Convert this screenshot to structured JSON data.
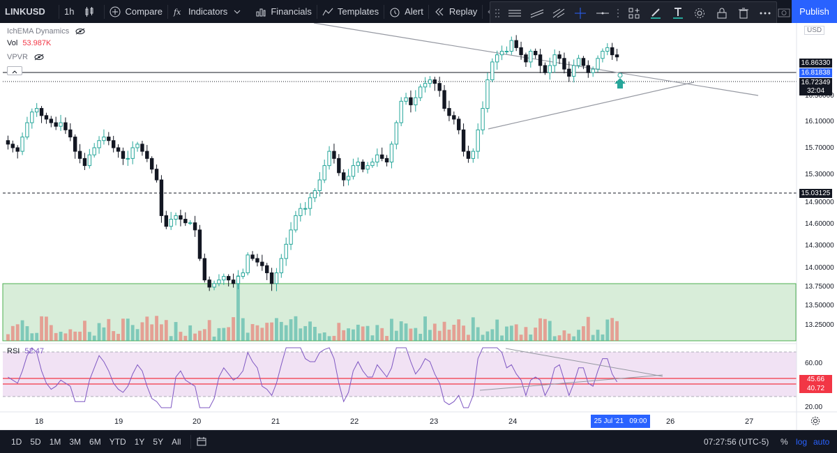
{
  "toolbar": {
    "symbol": "LINKUSD",
    "interval": "1h",
    "compare": "Compare",
    "indicators": "Indicators",
    "financials": "Financials",
    "templates": "Templates",
    "alert": "Alert",
    "replay": "Replay",
    "publish": "Publish"
  },
  "legends": {
    "ichema": "IchEMA Dynamics",
    "vol_label": "Vol",
    "vol_value": "53.987K",
    "vpvr": "VPVR",
    "rsi_label": "RSI",
    "rsi_value": "52.47"
  },
  "price_axis": {
    "currency": "USD",
    "ticks": [
      "16.50000",
      "16.10000",
      "15.70000",
      "15.30000",
      "14.90000",
      "14.60000",
      "14.30000",
      "14.00000",
      "13.75000",
      "13.50000",
      "13.25000"
    ],
    "tags": {
      "high_line": "16.86330",
      "current_blue": "16.81838",
      "last": "16.72349",
      "countdown": "32:04",
      "dashed_line": "15.03125"
    }
  },
  "rsi_axis": {
    "ticks": [
      "60.00",
      "20.00"
    ],
    "tag_upper": "45.66",
    "tag_lower": "40.72"
  },
  "time_axis": {
    "labels": [
      "18",
      "19",
      "20",
      "21",
      "22",
      "23",
      "24",
      "26",
      "27"
    ],
    "cursor_label": "25 Jul '21   09:00"
  },
  "bottom": {
    "ranges": [
      "1D",
      "5D",
      "1M",
      "3M",
      "6M",
      "YTD",
      "1Y",
      "5Y",
      "All"
    ],
    "clock": "07:27:56 (UTC-5)",
    "percent": "%",
    "log": "log",
    "auto": "auto"
  },
  "colors": {
    "up": "#26a69a",
    "down": "#131722",
    "upfill": "#ffffff",
    "blue": "#2962ff",
    "rsi": "#7e57c2"
  },
  "chart_data": {
    "type": "candlestick",
    "symbol": "LINKUSD",
    "timeframe": "1h",
    "x_labels": [
      "18",
      "19",
      "20",
      "21",
      "22",
      "23",
      "24",
      "26",
      "27"
    ],
    "price_range": [
      13.1,
      17.0
    ],
    "closes": [
      15.5,
      15.45,
      15.4,
      15.6,
      15.8,
      15.95,
      16.0,
      15.9,
      15.85,
      15.8,
      15.75,
      15.8,
      15.7,
      15.6,
      15.4,
      15.3,
      15.2,
      15.35,
      15.45,
      15.55,
      15.6,
      15.55,
      15.45,
      15.4,
      15.3,
      15.3,
      15.45,
      15.5,
      15.4,
      15.3,
      15.15,
      15.0,
      14.5,
      14.35,
      14.45,
      14.5,
      14.45,
      14.4,
      14.4,
      14.3,
      13.9,
      13.6,
      13.5,
      13.55,
      13.6,
      13.65,
      13.6,
      13.55,
      13.65,
      13.7,
      13.95,
      13.9,
      13.85,
      13.8,
      13.7,
      13.55,
      13.7,
      13.9,
      14.1,
      14.3,
      14.5,
      14.6,
      14.6,
      14.75,
      14.85,
      15.0,
      15.2,
      15.4,
      15.3,
      15.1,
      15.0,
      15.05,
      15.2,
      15.25,
      15.15,
      15.2,
      15.25,
      15.35,
      15.3,
      15.25,
      15.5,
      15.8,
      16.1,
      16.15,
      16.05,
      16.15,
      16.3,
      16.35,
      16.4,
      16.35,
      16.25,
      16.0,
      15.9,
      15.85,
      15.7,
      15.4,
      15.3,
      15.4,
      15.7,
      16.0,
      16.4,
      16.65,
      16.75,
      16.8,
      16.8,
      16.95,
      16.85,
      16.75,
      16.65,
      16.8,
      16.75,
      16.6,
      16.5,
      16.6,
      16.75,
      16.7,
      16.55,
      16.45,
      16.6,
      16.7,
      16.6,
      16.5,
      16.55,
      16.7,
      16.8,
      16.85,
      16.75,
      16.72
    ],
    "ema_overlay": "ichema-dynamics",
    "rsi": {
      "value": 52.47,
      "levels": [
        20,
        60
      ],
      "tags": [
        45.66,
        40.72
      ]
    },
    "horizontal_lines": [
      16.8633,
      16.72349,
      15.03125
    ],
    "zone": [
      13.1,
      13.75
    ]
  }
}
